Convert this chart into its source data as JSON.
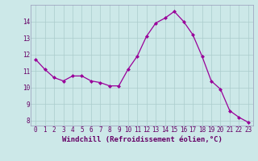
{
  "x": [
    0,
    1,
    2,
    3,
    4,
    5,
    6,
    7,
    8,
    9,
    10,
    11,
    12,
    13,
    14,
    15,
    16,
    17,
    18,
    19,
    20,
    21,
    22,
    23
  ],
  "y": [
    11.7,
    11.1,
    10.6,
    10.4,
    10.7,
    10.7,
    10.4,
    10.3,
    10.1,
    10.1,
    11.1,
    11.9,
    13.1,
    13.9,
    14.2,
    14.6,
    14.0,
    13.2,
    11.9,
    10.4,
    9.9,
    8.6,
    8.2,
    7.9
  ],
  "line_color": "#990099",
  "marker": "D",
  "marker_size": 2,
  "bg_color": "#cce8e8",
  "grid_color": "#aacccc",
  "xlabel": "Windchill (Refroidissement éolien,°C)",
  "ylim_min": 7.7,
  "ylim_max": 15.0,
  "xlim_min": -0.5,
  "xlim_max": 23.5,
  "yticks": [
    8,
    9,
    10,
    11,
    12,
    13,
    14
  ],
  "xticks": [
    0,
    1,
    2,
    3,
    4,
    5,
    6,
    7,
    8,
    9,
    10,
    11,
    12,
    13,
    14,
    15,
    16,
    17,
    18,
    19,
    20,
    21,
    22,
    23
  ],
  "tick_label_fontsize": 5.5,
  "xlabel_fontsize": 6.5,
  "tick_color": "#660066",
  "xlabel_color": "#660066",
  "spine_color": "#9999bb"
}
